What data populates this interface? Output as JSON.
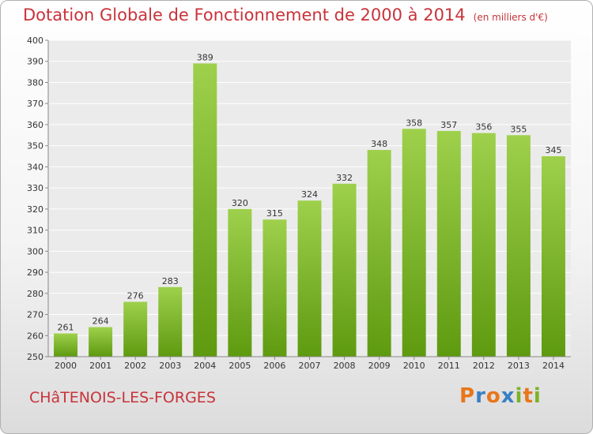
{
  "title": "Dotation Globale de Fonctionnement de 2000 à 2014",
  "subtitle": "(en milliers d'€)",
  "place_name": "CHâTENOIS-LES-FORGES",
  "logo": {
    "letters": [
      "P",
      "r",
      "o",
      "x",
      "i",
      "t",
      "i"
    ],
    "colors": [
      "#e8761b",
      "#3a7fc4",
      "#e8761b",
      "#3a7fc4",
      "#7cb228",
      "#e8761b",
      "#7cb228"
    ]
  },
  "colors": {
    "bar_top": "#9ed04c",
    "bar_bottom": "#5e9a10",
    "text_red": "#c8333a"
  },
  "chart_data": {
    "type": "bar",
    "title": "Dotation Globale de Fonctionnement de 2000 à 2014",
    "subtitle": "(en milliers d'€)",
    "categories": [
      "2000",
      "2001",
      "2002",
      "2003",
      "2004",
      "2005",
      "2006",
      "2007",
      "2008",
      "2009",
      "2010",
      "2011",
      "2012",
      "2013",
      "2014"
    ],
    "values": [
      261,
      264,
      276,
      283,
      389,
      320,
      315,
      324,
      332,
      348,
      358,
      357,
      356,
      355,
      345
    ],
    "ylim": [
      250,
      400
    ],
    "yticks": [
      250,
      260,
      270,
      280,
      290,
      300,
      310,
      320,
      330,
      340,
      350,
      360,
      370,
      380,
      390,
      400
    ],
    "grid": true,
    "data_labels": true
  }
}
